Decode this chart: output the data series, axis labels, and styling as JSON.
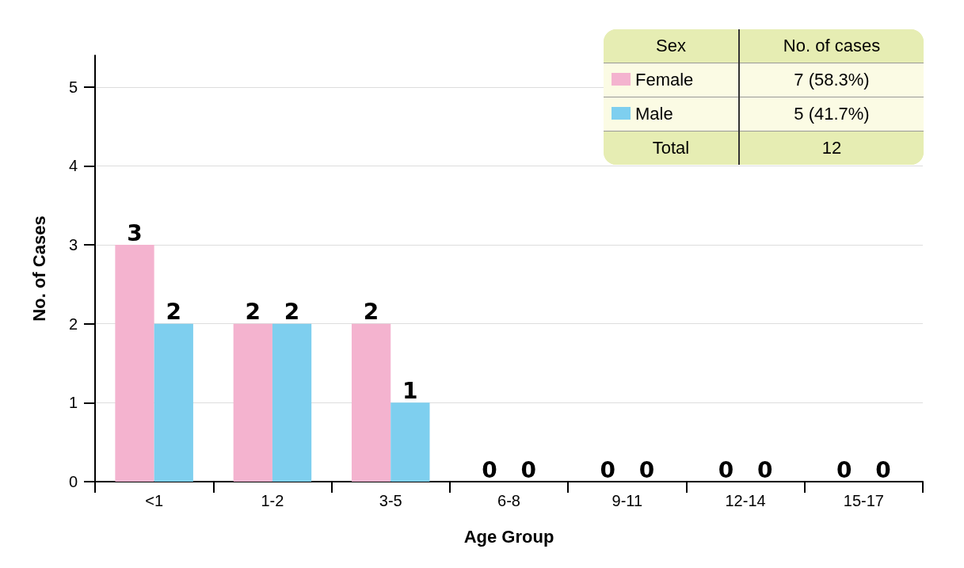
{
  "chart_data": {
    "type": "bar",
    "xlabel": "Age Group",
    "ylabel": "No. of Cases",
    "categories": [
      "<1",
      "1-2",
      "3-5",
      "6-8",
      "9-11",
      "12-14",
      "15-17"
    ],
    "series": [
      {
        "name": "Female",
        "color": "#f4b3cf",
        "values": [
          3,
          2,
          2,
          0,
          0,
          0,
          0
        ]
      },
      {
        "name": "Male",
        "color": "#7ecfef",
        "values": [
          2,
          2,
          1,
          0,
          0,
          0,
          0
        ]
      }
    ],
    "ylim": [
      0,
      5.4
    ],
    "yticks": [
      0,
      1,
      2,
      3,
      4,
      5
    ],
    "grid": "y",
    "data_labels": true,
    "legend": "top right",
    "annotations": [
      "Sex",
      "No. of cases",
      "7 (58.3%)",
      "5 (41.7%)",
      "Total",
      "12"
    ]
  }
}
